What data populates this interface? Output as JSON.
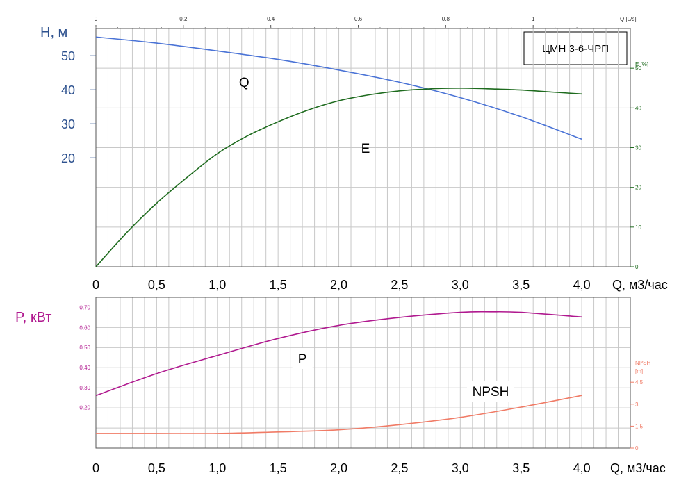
{
  "colors": {
    "head": "#4a73d6",
    "efficiency": "#1e6b1e",
    "power": "#b0198f",
    "npsh": "#f07b66",
    "h_axis": "#2e528f",
    "grid": "#c8c8c8"
  },
  "chart_data": [
    {
      "type": "line",
      "title": "ЦМН 3-6-ЧРП",
      "xlabel": "Q, м3/час",
      "xlim": [
        0,
        4.4
      ],
      "x_ticks": [
        "0",
        "0,5",
        "1,0",
        "1,5",
        "2,0",
        "2,5",
        "3,0",
        "3,5",
        "4,0"
      ],
      "top_axis": {
        "label": "Q [L/s]",
        "ticks": [
          "0",
          "0.2",
          "0.4",
          "0.6",
          "0.8",
          "1"
        ]
      },
      "left_axis": {
        "label": "H, м",
        "ticks": [
          "50",
          "40",
          "30",
          "20"
        ],
        "ylim": [
          -12,
          58
        ]
      },
      "right_axis": {
        "label": "E [%]",
        "ticks": [
          "0",
          "10",
          "20",
          "30",
          "40",
          "50"
        ],
        "ylim": [
          0,
          60
        ]
      },
      "grid": true,
      "series": [
        {
          "name": "Q",
          "axis": "left",
          "x": [
            0,
            0.5,
            1.0,
            1.5,
            2.0,
            2.5,
            3.0,
            3.5,
            4.0
          ],
          "y": [
            55.5,
            53.7,
            51.4,
            48.9,
            45.8,
            42.2,
            37.7,
            32.1,
            25.5
          ]
        },
        {
          "name": "E",
          "axis": "right",
          "x": [
            0,
            0.25,
            0.5,
            0.75,
            1.0,
            1.25,
            1.5,
            1.75,
            2.0,
            2.25,
            2.5,
            2.75,
            3.0,
            3.25,
            3.5,
            3.75,
            4.0
          ],
          "y": [
            0,
            8.5,
            16,
            22.5,
            28.5,
            33,
            36.5,
            39.5,
            41.8,
            43.3,
            44.3,
            44.8,
            45,
            44.8,
            44.5,
            44.0,
            43.5
          ]
        }
      ]
    },
    {
      "type": "line",
      "xlabel": "Q, м3/час",
      "xlim": [
        0,
        4.4
      ],
      "x_ticks": [
        "0",
        "0,5",
        "1,0",
        "1,5",
        "2,0",
        "2,5",
        "3,0",
        "3,5",
        "4,0"
      ],
      "left_axis": {
        "label": "P, кВт",
        "ticks": [
          "0.70",
          "0.60",
          "0.50",
          "0.40",
          "0.30",
          "0.20"
        ],
        "ylim": [
          -0.002,
          0.75
        ]
      },
      "right_axis": {
        "label": "NPSH",
        "unit": "[m]",
        "ticks": [
          "0",
          "1.5",
          "3",
          "4.5"
        ],
        "ylim": [
          0,
          10.3
        ]
      },
      "grid": true,
      "series": [
        {
          "name": "P",
          "axis": "left",
          "x": [
            0,
            0.5,
            1.0,
            1.5,
            2.0,
            2.5,
            3.0,
            3.25,
            3.5,
            4.0
          ],
          "y": [
            0.26,
            0.37,
            0.46,
            0.545,
            0.61,
            0.65,
            0.675,
            0.678,
            0.675,
            0.652
          ]
        },
        {
          "name": "NPSH",
          "axis": "right",
          "x": [
            0,
            0.5,
            1.0,
            1.5,
            2.0,
            2.5,
            3.0,
            3.5,
            4.0
          ],
          "y": [
            1.0,
            1.0,
            1.0,
            1.1,
            1.25,
            1.6,
            2.1,
            2.8,
            3.6
          ]
        }
      ]
    }
  ]
}
